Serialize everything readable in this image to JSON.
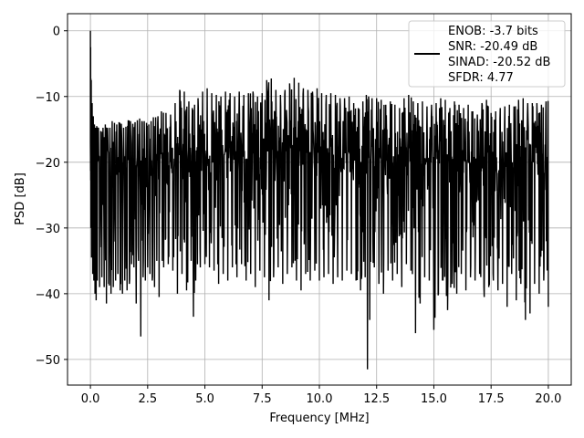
{
  "chart_data": {
    "type": "line",
    "xlabel": "Frequency [MHz]",
    "ylabel": "PSD [dB]",
    "xlim": [
      -1.0,
      21.0
    ],
    "ylim": [
      -53.9,
      2.6
    ],
    "x_ticks": [
      0.0,
      2.5,
      5.0,
      7.5,
      10.0,
      12.5,
      15.0,
      17.5,
      20.0
    ],
    "x_tick_labels": [
      "0.0",
      "2.5",
      "5.0",
      "7.5",
      "10.0",
      "12.5",
      "15.0",
      "17.5",
      "20.0"
    ],
    "y_ticks": [
      0,
      -10,
      -20,
      -30,
      -40,
      -50
    ],
    "y_tick_labels": [
      "0",
      "−10",
      "−20",
      "−30",
      "−40",
      "−50"
    ],
    "grid": true,
    "legend_position": "top-right",
    "legend_lines": [
      "ENOB: -3.7 bits",
      "SNR: -20.49 dB",
      "SINAD: -20.52 dB",
      "SFDR: 4.77"
    ],
    "series": [
      {
        "color": "#000000",
        "x": [
          0.0,
          0.02,
          0.05,
          0.1,
          0.15,
          0.2,
          0.25,
          0.3,
          0.4,
          0.5,
          0.6,
          0.7,
          0.8,
          0.9,
          1.0,
          1.1,
          1.2,
          1.3,
          1.4,
          1.5,
          1.6,
          1.7,
          1.8,
          1.9,
          2.0,
          2.1,
          2.2,
          2.3,
          2.4,
          2.5,
          2.6,
          2.7,
          2.8,
          2.9,
          3.0,
          3.2,
          3.4,
          3.6,
          3.8,
          4.0,
          4.2,
          4.4,
          4.5,
          4.6,
          4.8,
          5.0,
          5.2,
          5.4,
          5.6,
          5.8,
          6.0,
          6.2,
          6.4,
          6.6,
          6.8,
          7.0,
          7.2,
          7.4,
          7.6,
          7.8,
          8.0,
          8.2,
          8.4,
          8.6,
          8.8,
          9.0,
          9.2,
          9.4,
          9.6,
          9.8,
          10.0,
          10.2,
          10.4,
          10.6,
          10.8,
          11.0,
          11.2,
          11.4,
          11.6,
          11.8,
          12.0,
          12.1,
          12.2,
          12.4,
          12.6,
          12.8,
          13.0,
          13.2,
          13.4,
          13.6,
          13.8,
          14.0,
          14.2,
          14.4,
          14.6,
          14.8,
          15.0,
          15.2,
          15.4,
          15.6,
          15.8,
          16.0,
          16.2,
          16.4,
          16.6,
          16.8,
          17.0,
          17.2,
          17.4,
          17.6,
          17.8,
          18.0,
          18.2,
          18.4,
          18.6,
          18.8,
          19.0,
          19.2,
          19.4,
          19.6,
          19.8,
          20.0
        ],
        "y_max": [
          0.0,
          -5.0,
          -10.0,
          -12.0,
          -14.0,
          -14.5,
          -15.0,
          -14.0,
          -15.5,
          -15.0,
          -14.5,
          -14.0,
          -15.5,
          -14.0,
          -13.5,
          -14.5,
          -14.0,
          -13.8,
          -14.5,
          -15.0,
          -14.2,
          -13.0,
          -14.5,
          -13.8,
          -14.0,
          -13.2,
          -13.5,
          -14.0,
          -13.5,
          -14.5,
          -14.0,
          -13.5,
          -12.8,
          -13.5,
          -12.5,
          -12.0,
          -13.0,
          -12.5,
          -9.5,
          -8.5,
          -10.0,
          -11.5,
          -12.0,
          -10.5,
          -10.0,
          -8.5,
          -9.0,
          -10.0,
          -9.5,
          -10.5,
          -8.0,
          -11.0,
          -9.0,
          -9.5,
          -10.0,
          -9.0,
          -9.5,
          -10.5,
          -8.5,
          -6.5,
          -8.0,
          -10.0,
          -9.5,
          -8.5,
          -7.5,
          -6.8,
          -9.0,
          -8.5,
          -9.5,
          -9.0,
          -8.5,
          -10.5,
          -9.0,
          -10.0,
          -9.5,
          -11.0,
          -9.5,
          -10.5,
          -11.5,
          -12.0,
          -9.5,
          -10.0,
          -10.0,
          -10.5,
          -10.0,
          -11.0,
          -11.5,
          -10.0,
          -12.5,
          -11.0,
          -9.5,
          -10.0,
          -11.5,
          -10.5,
          -11.0,
          -12.0,
          -10.5,
          -11.5,
          -9.0,
          -12.0,
          -11.5,
          -10.0,
          -12.5,
          -11.0,
          -11.5,
          -13.0,
          -12.5,
          -9.5,
          -11.5,
          -13.5,
          -11.0,
          -12.5,
          -10.5,
          -12.0,
          -11.0,
          -10.0,
          -10.5,
          -11.5,
          -10.5,
          -11.5,
          -11.0,
          -10.5
        ],
        "y_min": [
          -17.0,
          -30.0,
          -34.5,
          -37.0,
          -38.0,
          -40.0,
          -41.0,
          -38.0,
          -39.0,
          -37.5,
          -39.0,
          -41.5,
          -38.5,
          -40.0,
          -39.0,
          -38.0,
          -37.0,
          -39.5,
          -40.0,
          -38.0,
          -39.5,
          -38.5,
          -35.5,
          -36.0,
          -41.5,
          -35.0,
          -46.5,
          -37.5,
          -38.0,
          -36.0,
          -37.0,
          -38.0,
          -39.0,
          -35.0,
          -40.5,
          -36.0,
          -35.5,
          -36.5,
          -40.0,
          -37.0,
          -39.5,
          -35.0,
          -43.5,
          -38.0,
          -36.0,
          -35.5,
          -36.0,
          -36.5,
          -38.5,
          -37.0,
          -38.0,
          -36.0,
          -37.5,
          -35.5,
          -38.0,
          -37.0,
          -39.0,
          -36.5,
          -37.5,
          -41.0,
          -37.5,
          -36.0,
          -38.5,
          -37.0,
          -36.0,
          -38.0,
          -39.5,
          -37.0,
          -38.0,
          -36.5,
          -38.0,
          -37.5,
          -37.0,
          -38.5,
          -37.5,
          -38.0,
          -36.5,
          -37.0,
          -38.0,
          -39.5,
          -37.5,
          -51.5,
          -44.0,
          -36.0,
          -38.5,
          -40.0,
          -36.5,
          -38.0,
          -37.0,
          -39.0,
          -35.5,
          -36.5,
          -46.0,
          -41.5,
          -37.5,
          -38.0,
          -45.5,
          -40.0,
          -38.0,
          -42.5,
          -38.5,
          -40.0,
          -37.0,
          -39.5,
          -37.5,
          -38.0,
          -37.0,
          -40.5,
          -39.0,
          -38.0,
          -39.5,
          -38.5,
          -42.0,
          -37.0,
          -41.0,
          -38.5,
          -44.0,
          -43.0,
          -38.5,
          -40.0,
          -38.0,
          -42.0
        ],
        "y_typical": [
          -18.0,
          -22.0,
          -20.0,
          -20.5,
          -19.5,
          -20.0,
          -21.0,
          -20.0,
          -19.5,
          -21.0,
          -20.0,
          -20.5,
          -19.0,
          -20.0,
          -21.0,
          -20.0,
          -19.5,
          -20.5,
          -20.0,
          -21.0,
          -19.5,
          -20.0,
          -20.5,
          -19.5,
          -20.0,
          -21.0,
          -20.0,
          -19.5,
          -20.0,
          -20.5,
          -19.0,
          -20.0,
          -20.5,
          -19.5,
          -20.0,
          -19.0,
          -20.5,
          -19.5,
          -19.0,
          -18.5,
          -19.5,
          -20.0,
          -20.5,
          -19.5,
          -19.0,
          -18.0,
          -19.0,
          -19.5,
          -18.5,
          -19.0,
          -18.0,
          -19.5,
          -18.5,
          -19.0,
          -19.5,
          -18.5,
          -19.0,
          -19.5,
          -18.0,
          -17.0,
          -18.5,
          -19.0,
          -18.0,
          -18.5,
          -17.5,
          -17.0,
          -18.5,
          -18.0,
          -19.0,
          -18.5,
          -18.0,
          -19.5,
          -18.5,
          -19.0,
          -18.5,
          -19.5,
          -18.5,
          -19.0,
          -20.0,
          -20.5,
          -18.5,
          -19.0,
          -19.5,
          -19.5,
          -19.0,
          -20.0,
          -20.5,
          -19.0,
          -20.5,
          -19.5,
          -18.5,
          -19.0,
          -20.0,
          -19.5,
          -19.5,
          -20.5,
          -19.0,
          -20.0,
          -18.5,
          -20.0,
          -20.0,
          -19.0,
          -20.5,
          -19.5,
          -20.0,
          -21.0,
          -20.5,
          -18.5,
          -20.0,
          -21.0,
          -19.5,
          -20.5,
          -19.5,
          -20.0,
          -19.5,
          -19.0,
          -19.5,
          -20.0,
          -19.5,
          -20.0,
          -19.5,
          -20.0
        ]
      }
    ]
  }
}
